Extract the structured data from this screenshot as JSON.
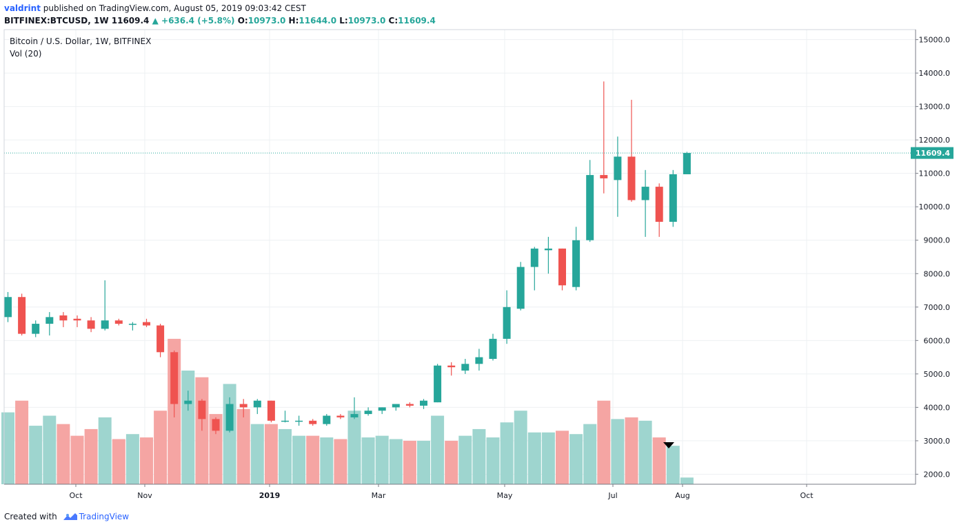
{
  "header": {
    "publisher": "valdrint",
    "published_text": "published on TradingView.com, August 05, 2019 09:03:42 CEST",
    "symbol": "BITFINEX:BTCUSD, 1W",
    "last": "11609.4",
    "change": "+636.4 (+5.8%)",
    "open_label": "O:",
    "open": "10973.0",
    "high_label": "H:",
    "high": "11644.0",
    "low_label": "L:",
    "low": "10973.0",
    "close_label": "C:",
    "close": "11609.4"
  },
  "legend": {
    "title": "Bitcoin / U.S. Dollar, 1W, BITFINEX",
    "volume_label": "Vol (20)"
  },
  "footer": {
    "created_with": "Created with",
    "brand": "TradingView"
  },
  "colors": {
    "up": "#26a69a",
    "down": "#ef5350",
    "vol_up": "#9ed5cf",
    "vol_down": "#f5a5a3",
    "grid": "#eef0f3",
    "price_line": "#26a69a"
  },
  "chart_data": {
    "type": "candlestick",
    "title": "Bitcoin / U.S. Dollar, 1W, BITFINEX",
    "ylim": [
      1700,
      15300
    ],
    "y_ticks": [
      "15000.0",
      "14000.0",
      "13000.0",
      "12000.0",
      "11000.0",
      "10000.0",
      "9000.0",
      "8000.0",
      "7000.0",
      "6000.0",
      "5000.0",
      "4000.0",
      "3000.0",
      "2000.0"
    ],
    "x_ticks": [
      "Oct",
      "Nov",
      "2019",
      "Mar",
      "May",
      "Jul",
      "Aug",
      "Oct"
    ],
    "last_price_label": "11609.4",
    "volume_series_name": "Vol (20)",
    "volume_ylim": [
      1700,
      15300
    ],
    "candles": [
      {
        "o": 6700,
        "h": 7450,
        "l": 6550,
        "c": 7300
      },
      {
        "o": 7300,
        "h": 7400,
        "l": 6150,
        "c": 6200
      },
      {
        "o": 6200,
        "h": 6600,
        "l": 6100,
        "c": 6500
      },
      {
        "o": 6500,
        "h": 6850,
        "l": 6150,
        "c": 6700
      },
      {
        "o": 6750,
        "h": 6850,
        "l": 6400,
        "c": 6600
      },
      {
        "o": 6650,
        "h": 6750,
        "l": 6400,
        "c": 6600
      },
      {
        "o": 6600,
        "h": 6700,
        "l": 6250,
        "c": 6350
      },
      {
        "o": 6350,
        "h": 7800,
        "l": 6300,
        "c": 6600
      },
      {
        "o": 6600,
        "h": 6650,
        "l": 6450,
        "c": 6500
      },
      {
        "o": 6500,
        "h": 6550,
        "l": 6300,
        "c": 6500
      },
      {
        "o": 6550,
        "h": 6650,
        "l": 6400,
        "c": 6450
      },
      {
        "o": 6450,
        "h": 6500,
        "l": 5500,
        "c": 5650
      },
      {
        "o": 5650,
        "h": 5700,
        "l": 3700,
        "c": 4100
      },
      {
        "o": 4100,
        "h": 4500,
        "l": 3900,
        "c": 4200
      },
      {
        "o": 4200,
        "h": 4250,
        "l": 3300,
        "c": 3650
      },
      {
        "o": 3650,
        "h": 3700,
        "l": 3200,
        "c": 3300
      },
      {
        "o": 3300,
        "h": 4300,
        "l": 3250,
        "c": 4100
      },
      {
        "o": 4100,
        "h": 4250,
        "l": 3700,
        "c": 4000
      },
      {
        "o": 4000,
        "h": 4250,
        "l": 3800,
        "c": 4200
      },
      {
        "o": 4200,
        "h": 4200,
        "l": 3550,
        "c": 3600
      },
      {
        "o": 3600,
        "h": 3900,
        "l": 3550,
        "c": 3600
      },
      {
        "o": 3600,
        "h": 3750,
        "l": 3450,
        "c": 3600
      },
      {
        "o": 3600,
        "h": 3650,
        "l": 3450,
        "c": 3500
      },
      {
        "o": 3500,
        "h": 3800,
        "l": 3450,
        "c": 3750
      },
      {
        "o": 3750,
        "h": 3800,
        "l": 3650,
        "c": 3700
      },
      {
        "o": 3700,
        "h": 4300,
        "l": 3650,
        "c": 3800
      },
      {
        "o": 3800,
        "h": 4000,
        "l": 3750,
        "c": 3900
      },
      {
        "o": 3900,
        "h": 4000,
        "l": 3800,
        "c": 4000
      },
      {
        "o": 4000,
        "h": 4100,
        "l": 3900,
        "c": 4100
      },
      {
        "o": 4100,
        "h": 4150,
        "l": 4000,
        "c": 4050
      },
      {
        "o": 4050,
        "h": 4250,
        "l": 3950,
        "c": 4200
      },
      {
        "o": 4150,
        "h": 5300,
        "l": 4150,
        "c": 5250
      },
      {
        "o": 5250,
        "h": 5350,
        "l": 4950,
        "c": 5200
      },
      {
        "o": 5100,
        "h": 5450,
        "l": 5000,
        "c": 5300
      },
      {
        "o": 5300,
        "h": 5750,
        "l": 5100,
        "c": 5500
      },
      {
        "o": 5450,
        "h": 6200,
        "l": 5400,
        "c": 6050
      },
      {
        "o": 6050,
        "h": 7500,
        "l": 5900,
        "c": 7000
      },
      {
        "o": 6950,
        "h": 8350,
        "l": 6900,
        "c": 8200
      },
      {
        "o": 8200,
        "h": 8800,
        "l": 7500,
        "c": 8750
      },
      {
        "o": 8700,
        "h": 9100,
        "l": 8000,
        "c": 8750
      },
      {
        "o": 8750,
        "h": 8750,
        "l": 7500,
        "c": 7650
      },
      {
        "o": 7600,
        "h": 9400,
        "l": 7500,
        "c": 9000
      },
      {
        "o": 9000,
        "h": 11400,
        "l": 8950,
        "c": 10950
      },
      {
        "o": 10950,
        "h": 13750,
        "l": 10400,
        "c": 10850
      },
      {
        "o": 10800,
        "h": 12100,
        "l": 9700,
        "c": 11500
      },
      {
        "o": 11500,
        "h": 13200,
        "l": 10150,
        "c": 10200
      },
      {
        "o": 10200,
        "h": 11100,
        "l": 9100,
        "c": 10600
      },
      {
        "o": 10600,
        "h": 10700,
        "l": 9100,
        "c": 9550
      },
      {
        "o": 9550,
        "h": 11100,
        "l": 9400,
        "c": 10973
      },
      {
        "o": 10973,
        "h": 11644,
        "l": 10973,
        "c": 11609.4
      }
    ],
    "volume": [
      2150,
      2500,
      1750,
      2050,
      1800,
      1450,
      1650,
      2000,
      1350,
      1500,
      1400,
      2200,
      4350,
      3400,
      3200,
      2100,
      3000,
      2250,
      1800,
      1800,
      1650,
      1450,
      1450,
      1400,
      1350,
      2200,
      1400,
      1450,
      1350,
      1300,
      1300,
      2050,
      1300,
      1450,
      1650,
      1400,
      1850,
      2200,
      1550,
      1550,
      1600,
      1500,
      1800,
      2500,
      1950,
      2000,
      1900,
      1400,
      1150,
      200
    ]
  }
}
